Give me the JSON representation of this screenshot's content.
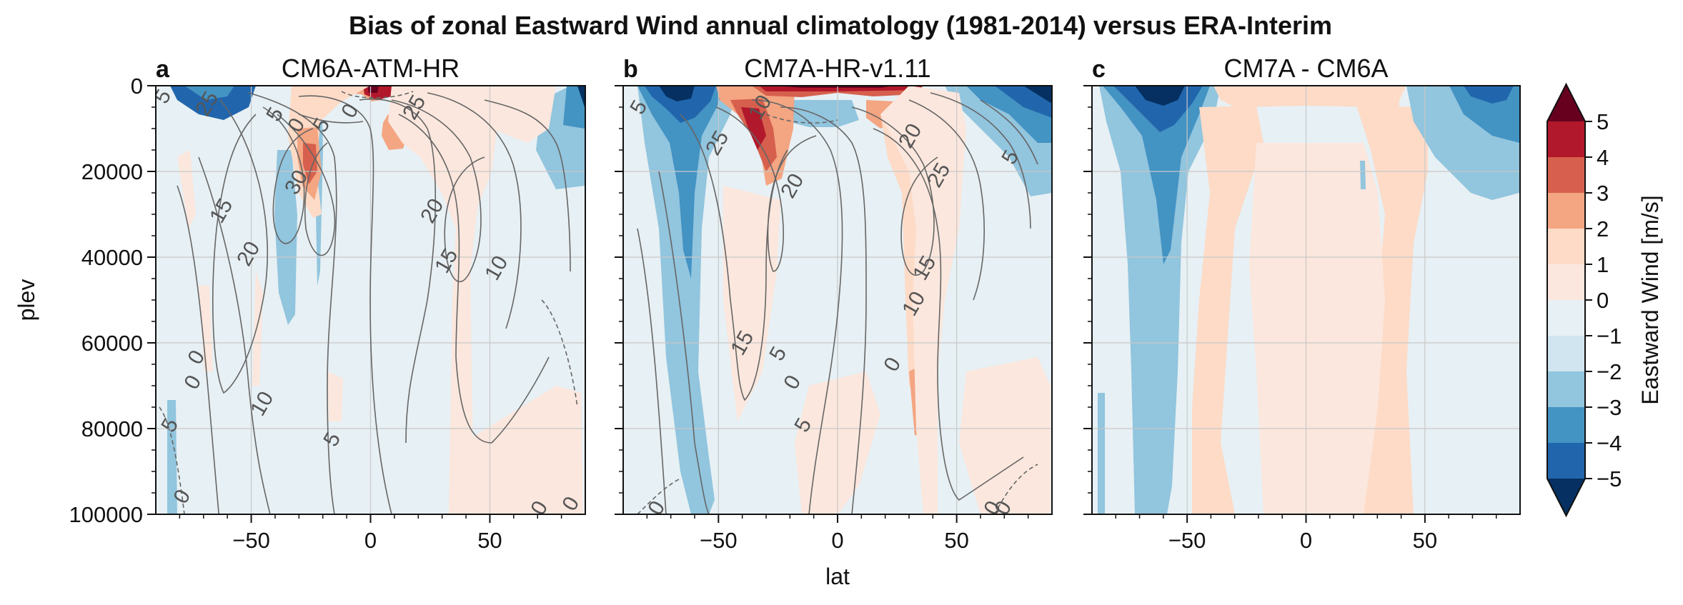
{
  "title": "Bias of zonal Eastward Wind annual climatology (1981-2014) versus ERA-Interim",
  "colors": {
    "levels": [
      "#053061",
      "#2166ac",
      "#4393c3",
      "#92c5de",
      "#d1e5f0",
      "#e7f0f4",
      "#fbe7dd",
      "#fddbc7",
      "#f4a582",
      "#d6604d",
      "#b2182b",
      "#67001f"
    ],
    "contour": "#666666",
    "grid": "#c8c8c8"
  },
  "chart_data": [
    {
      "type": "contour",
      "letter": "a",
      "title": "CM6A-ATM-HR",
      "xlabel": "",
      "ylabel": "plev",
      "xlim": [
        -90,
        90
      ],
      "ylim": [
        100000,
        0
      ],
      "xticks": [
        -50,
        0,
        50
      ],
      "yticks": [
        0,
        20000,
        40000,
        60000,
        80000,
        100000
      ],
      "contour_labels": [
        "5",
        "25",
        "5",
        "0",
        "5",
        "25",
        "0",
        "30",
        "15",
        "20",
        "20",
        "15",
        "10",
        "0",
        "0",
        "5",
        "10",
        "0",
        "5",
        "0",
        "0"
      ]
    },
    {
      "type": "contour",
      "letter": "b",
      "title": "CM7A-HR-v1.11",
      "xlabel": "lat",
      "ylabel": "",
      "xlim": [
        -90,
        90
      ],
      "ylim": [
        100000,
        0
      ],
      "xticks": [
        -50,
        0,
        50
      ],
      "yticks": [
        0,
        20000,
        40000,
        60000,
        80000,
        100000
      ],
      "contour_labels": [
        "5",
        "25",
        "10",
        "20",
        "25",
        "20",
        "15",
        "10",
        "5",
        "0",
        "15",
        "5",
        "0",
        "5",
        "0",
        "0",
        "0"
      ]
    },
    {
      "type": "contour",
      "letter": "c",
      "title": "CM7A - CM6A",
      "xlabel": "",
      "ylabel": "",
      "xlim": [
        -90,
        90
      ],
      "ylim": [
        100000,
        0
      ],
      "xticks": [
        -50,
        0,
        50
      ],
      "yticks": [
        0,
        20000,
        40000,
        60000,
        80000,
        100000
      ],
      "contour_labels": []
    }
  ],
  "colorbar": {
    "label": "Eastward Wind [m/s]",
    "ticks": [
      "5",
      "4",
      "3",
      "2",
      "1",
      "0",
      "−1",
      "−2",
      "−3",
      "−4",
      "−5"
    ],
    "extend": "both"
  }
}
